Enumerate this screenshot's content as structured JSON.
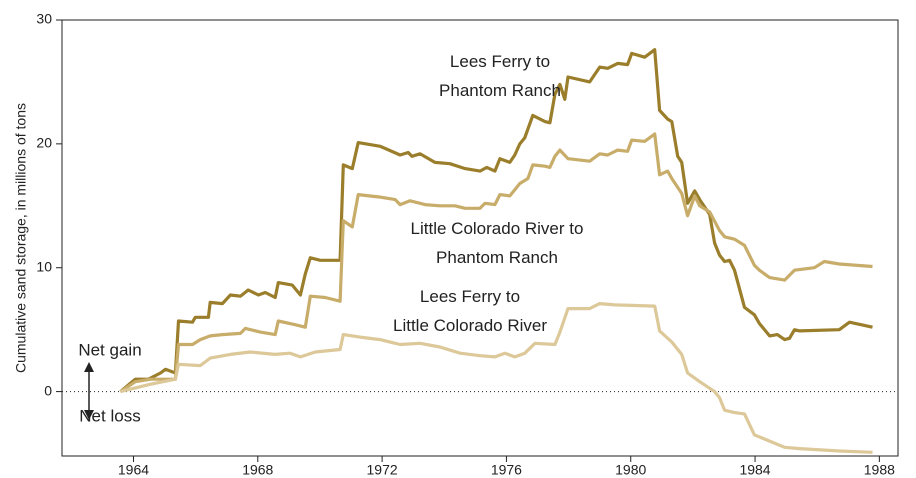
{
  "chart_data": {
    "type": "line",
    "y_label": "Cumulative sand storage, in millions of tons",
    "xlim": [
      1961.7,
      1988.6
    ],
    "xticks": [
      1964,
      1968,
      1972,
      1976,
      1980,
      1984,
      1988
    ],
    "ylim": [
      -5.2,
      30
    ],
    "yticks": [
      0,
      10,
      20,
      30
    ],
    "grid": false,
    "annotations": [
      "Net gain",
      "Net loss"
    ],
    "series": [
      {
        "name": "Lees Ferry to Phantom Ranch",
        "color": "#9b7e2b",
        "x": [
          1963.58,
          1964.06,
          1964.48,
          1964.87,
          1965.03,
          1965.35,
          1965.45,
          1965.9,
          1965.99,
          1966.41,
          1966.47,
          1966.86,
          1967.12,
          1967.44,
          1967.69,
          1968.02,
          1968.24,
          1968.56,
          1968.66,
          1969.11,
          1969.37,
          1969.53,
          1969.69,
          1970.01,
          1970.65,
          1970.75,
          1971.04,
          1971.23,
          1971.94,
          1972.58,
          1972.84,
          1972.96,
          1973.22,
          1973.7,
          1974.18,
          1974.67,
          1975.15,
          1975.37,
          1975.63,
          1975.79,
          1976.11,
          1976.27,
          1976.43,
          1976.59,
          1976.85,
          1977.24,
          1977.4,
          1977.56,
          1977.72,
          1977.88,
          1977.98,
          1978.68,
          1979.0,
          1979.26,
          1979.58,
          1979.9,
          1980.03,
          1980.45,
          1980.77,
          1980.93,
          1981.19,
          1981.32,
          1981.51,
          1981.64,
          1981.83,
          1982.06,
          1982.22,
          1982.54,
          1982.7,
          1982.86,
          1983.02,
          1983.18,
          1983.34,
          1983.66,
          1983.98,
          1984.14,
          1984.47,
          1984.72,
          1984.95,
          1985.11,
          1985.27,
          1985.43,
          1986.71,
          1987.04,
          1987.78
        ],
        "values": [
          0,
          1,
          1,
          1.5,
          1.8,
          1.5,
          5.7,
          5.6,
          6,
          6,
          7.2,
          7.1,
          7.8,
          7.7,
          8.2,
          7.8,
          8,
          7.6,
          8.8,
          8.6,
          7.8,
          9.5,
          10.8,
          10.6,
          10.6,
          18.3,
          18,
          20.1,
          19.8,
          19.1,
          19.3,
          19,
          19.2,
          18.5,
          18.4,
          18,
          17.8,
          18.1,
          17.8,
          18.8,
          18.5,
          19.1,
          20,
          20.5,
          22.3,
          21.8,
          21.7,
          24,
          24.8,
          23.6,
          25.4,
          25,
          26.2,
          26.1,
          26.5,
          26.4,
          27.3,
          27,
          27.6,
          22.7,
          22,
          21.8,
          19,
          18.5,
          15.2,
          16.2,
          15.5,
          14.3,
          12,
          11,
          10.5,
          10.6,
          9.8,
          6.8,
          6.2,
          5.5,
          4.5,
          4.6,
          4.2,
          4.3,
          5,
          4.9,
          5,
          5.6,
          5.2
        ]
      },
      {
        "name": "Little Colorado River to Phantom Ranch",
        "color": "#c8ac69",
        "x": [
          1963.58,
          1964.06,
          1964.55,
          1965.35,
          1965.45,
          1965.9,
          1966.15,
          1966.47,
          1966.86,
          1967.44,
          1967.6,
          1968.08,
          1968.56,
          1968.66,
          1969.2,
          1969.53,
          1969.69,
          1970.17,
          1970.65,
          1970.75,
          1971.04,
          1971.23,
          1971.94,
          1972.42,
          1972.58,
          1972.9,
          1973.38,
          1973.86,
          1974.35,
          1974.67,
          1975.15,
          1975.31,
          1975.63,
          1975.79,
          1976.11,
          1976.27,
          1976.43,
          1976.69,
          1976.85,
          1977.24,
          1977.4,
          1977.56,
          1977.72,
          1977.98,
          1978.68,
          1979.0,
          1979.26,
          1979.58,
          1979.9,
          1980.03,
          1980.45,
          1980.77,
          1980.93,
          1981.19,
          1981.32,
          1981.64,
          1981.83,
          1982.06,
          1982.22,
          1982.54,
          1982.86,
          1983.02,
          1983.34,
          1983.66,
          1983.98,
          1984.14,
          1984.47,
          1984.95,
          1985.27,
          1985.91,
          1986.23,
          1986.71,
          1987.78
        ],
        "values": [
          0,
          0.8,
          1,
          1,
          3.8,
          3.8,
          4.2,
          4.5,
          4.6,
          4.7,
          5.1,
          4.8,
          4.6,
          5.7,
          5.4,
          5.2,
          7.7,
          7.6,
          7.3,
          13.8,
          13.3,
          15.9,
          15.7,
          15.5,
          15.1,
          15.4,
          15.1,
          15,
          15,
          14.8,
          14.8,
          15.2,
          15.1,
          15.9,
          15.8,
          16.3,
          16.8,
          17.2,
          18.3,
          18.2,
          18.1,
          19,
          19.5,
          18.8,
          18.6,
          19.2,
          19.1,
          19.5,
          19.4,
          20.3,
          20.2,
          20.8,
          17.5,
          17.8,
          17.2,
          16,
          14.2,
          15.8,
          15,
          14.5,
          13,
          12.5,
          12.3,
          11.8,
          10.2,
          9.8,
          9.2,
          9,
          9.8,
          10,
          10.5,
          10.3,
          10.1
        ]
      },
      {
        "name": "Lees Ferry to Little Colorado River",
        "color": "#dcc899",
        "x": [
          1963.58,
          1964.06,
          1964.55,
          1965.35,
          1965.45,
          1966.15,
          1966.47,
          1967.12,
          1967.76,
          1968.56,
          1969.04,
          1969.37,
          1969.85,
          1970.65,
          1970.75,
          1971.29,
          1971.94,
          1972.58,
          1973.22,
          1973.86,
          1974.51,
          1975.15,
          1975.63,
          1975.95,
          1976.27,
          1976.59,
          1976.92,
          1977.56,
          1977.72,
          1977.98,
          1978.68,
          1979.0,
          1979.49,
          1980.77,
          1980.93,
          1981.32,
          1981.64,
          1981.83,
          1982.22,
          1982.7,
          1982.86,
          1983.02,
          1983.34,
          1983.66,
          1983.98,
          1984.47,
          1984.95,
          1985.43,
          1986.71,
          1987.78
        ],
        "values": [
          0,
          0.3,
          0.6,
          1,
          2.2,
          2.1,
          2.7,
          3,
          3.2,
          3,
          3.1,
          2.8,
          3.2,
          3.4,
          4.6,
          4.4,
          4.2,
          3.8,
          3.9,
          3.6,
          3.1,
          2.9,
          2.8,
          3.1,
          2.8,
          3.1,
          3.9,
          3.8,
          4.8,
          6.7,
          6.7,
          7.1,
          7,
          6.9,
          4.9,
          4,
          3,
          1.5,
          0.8,
          0,
          -0.5,
          -1.5,
          -1.7,
          -1.8,
          -3.5,
          -4,
          -4.5,
          -4.6,
          -4.8,
          -4.9
        ]
      }
    ]
  }
}
